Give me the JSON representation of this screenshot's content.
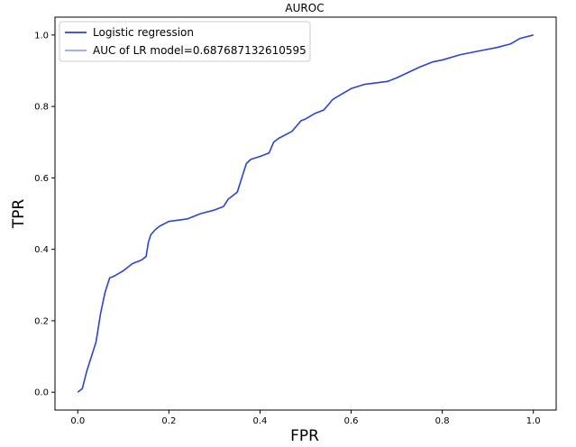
{
  "chart_data": {
    "type": "line",
    "title": "AUROC",
    "xlabel": "FPR",
    "ylabel": "TPR",
    "xlim": [
      -0.05,
      1.05
    ],
    "ylim": [
      -0.05,
      1.05
    ],
    "x_ticks": [
      "0.0",
      "0.2",
      "0.4",
      "0.6",
      "0.8",
      "1.0"
    ],
    "y_ticks": [
      "0.0",
      "0.2",
      "0.4",
      "0.6",
      "0.8",
      "1.0"
    ],
    "grid": false,
    "legend_position": "top-left",
    "legend": [
      "Logistic regression",
      "AUC of LR model=0.687687132610595"
    ],
    "series": [
      {
        "name": "Logistic regression",
        "color": "#2a44d6",
        "x": [
          0.0,
          0.01,
          0.02,
          0.03,
          0.04,
          0.05,
          0.06,
          0.07,
          0.08,
          0.1,
          0.12,
          0.14,
          0.15,
          0.155,
          0.16,
          0.17,
          0.18,
          0.2,
          0.24,
          0.27,
          0.3,
          0.32,
          0.33,
          0.35,
          0.36,
          0.37,
          0.38,
          0.4,
          0.42,
          0.43,
          0.44,
          0.47,
          0.49,
          0.5,
          0.52,
          0.54,
          0.55,
          0.56,
          0.6,
          0.63,
          0.68,
          0.7,
          0.75,
          0.78,
          0.8,
          0.84,
          0.88,
          0.92,
          0.95,
          0.97,
          1.0
        ],
        "y": [
          0.0,
          0.01,
          0.06,
          0.1,
          0.14,
          0.22,
          0.28,
          0.32,
          0.325,
          0.34,
          0.36,
          0.37,
          0.38,
          0.42,
          0.44,
          0.455,
          0.465,
          0.478,
          0.485,
          0.5,
          0.51,
          0.52,
          0.54,
          0.56,
          0.6,
          0.64,
          0.652,
          0.66,
          0.67,
          0.7,
          0.71,
          0.73,
          0.76,
          0.765,
          0.78,
          0.79,
          0.805,
          0.82,
          0.85,
          0.862,
          0.87,
          0.88,
          0.91,
          0.925,
          0.93,
          0.945,
          0.955,
          0.965,
          0.975,
          0.99,
          1.0
        ]
      }
    ]
  }
}
